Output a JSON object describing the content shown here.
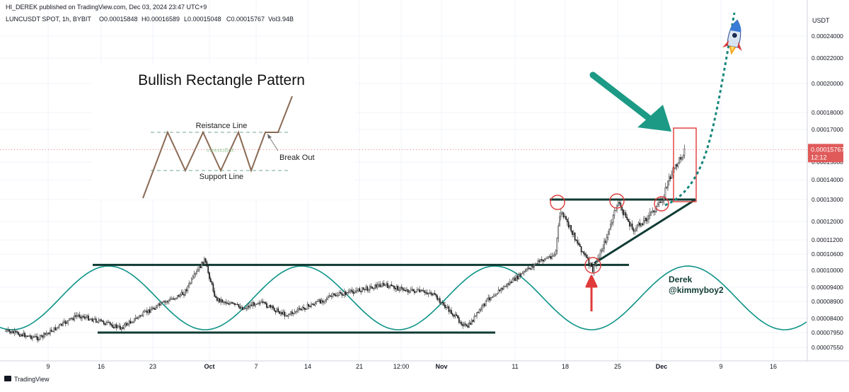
{
  "header": {
    "publisher": "HI_DEREK published on TradingView.com, Dec 03, 2024 23:47 UTC+9",
    "symbol": "LUNCUSDT SPOT, 1h, BYBIT",
    "open": "O0.00015848",
    "high": "H0.00016589",
    "low": "L0.00015048",
    "close": "C0.00015767",
    "volume": "Vol3.94B"
  },
  "price_axis": {
    "currency": "USDT",
    "ticks": [
      {
        "label": "0.00024000",
        "value": 0.00024
      },
      {
        "label": "0.00022000",
        "value": 0.00022
      },
      {
        "label": "0.00020000",
        "value": 0.0002
      },
      {
        "label": "0.00018000",
        "value": 0.00018
      },
      {
        "label": "0.00017000",
        "value": 0.00017
      },
      {
        "label": "0.00015000",
        "value": 0.00015
      },
      {
        "label": "0.00014000",
        "value": 0.00014
      },
      {
        "label": "0.00013000",
        "value": 0.00013
      },
      {
        "label": "0.00012000",
        "value": 0.00012
      },
      {
        "label": "0.00011200",
        "value": 0.000112
      },
      {
        "label": "0.00010600",
        "value": 0.000106
      },
      {
        "label": "0.00010000",
        "value": 0.0001
      },
      {
        "label": "0.00009400",
        "value": 9.4e-05
      },
      {
        "label": "0.00008900",
        "value": 8.9e-05
      },
      {
        "label": "0.00008400",
        "value": 8.4e-05
      },
      {
        "label": "0.00007950",
        "value": 7.95e-05
      },
      {
        "label": "0.00007550",
        "value": 7.55e-05
      }
    ],
    "last_price_label": "0.00015767",
    "last_price_value": 0.00015767,
    "countdown": "12:12"
  },
  "time_axis": {
    "ticks": [
      {
        "label": "9",
        "bold": false
      },
      {
        "label": "16",
        "bold": false
      },
      {
        "label": "23",
        "bold": false
      },
      {
        "label": "Oct",
        "bold": true
      },
      {
        "label": "7",
        "bold": false
      },
      {
        "label": "14",
        "bold": false
      },
      {
        "label": "21",
        "bold": false
      },
      {
        "label": "12:00",
        "bold": false
      },
      {
        "label": "Nov",
        "bold": true
      },
      {
        "label": "11",
        "bold": false
      },
      {
        "label": "18",
        "bold": false
      },
      {
        "label": "25",
        "bold": false
      },
      {
        "label": "Dec",
        "bold": true
      },
      {
        "label": "9",
        "bold": false
      },
      {
        "label": "16",
        "bold": false
      }
    ]
  },
  "inset": {
    "title": "Bullish Rectangle Pattern",
    "resistance_label": "Reistance Line",
    "support_label": "Support Line",
    "breakout_label": "Break Out",
    "watermark": "investoBull"
  },
  "annotation": {
    "author": "Derek",
    "handle": "@kimmyboy2"
  },
  "brand": "TradingView",
  "colors": {
    "up": "#1f1f1f",
    "level_line": "#0f3b33",
    "sine": "#0f9488",
    "projection": "#17877b",
    "big_arrow": "#1c9a85",
    "marker_red": "#e03a3a",
    "price_tag": "#e05a5a"
  },
  "chart_data": {
    "type": "candlestick",
    "symbol": "LUNCUSDT",
    "interval": "1h",
    "exchange": "BYBIT",
    "series": [
      {
        "name": "",
        "x": [
          "Sep 05",
          "Sep 09",
          "Sep 13",
          "Sep 16",
          "Sep 19",
          "Sep 23",
          "Sep 26",
          "Sep 29",
          "Oct 01",
          "Oct 04",
          "Oct 07",
          "Oct 10",
          "Oct 14",
          "Oct 17",
          "Oct 21",
          "Oct 24",
          "Oct 28",
          "Oct 31",
          "Nov 04",
          "Nov 07",
          "Nov 11",
          "Nov 14",
          "Nov 16",
          "Nov 18",
          "Nov 21",
          "Nov 23",
          "Nov 25",
          "Nov 27",
          "Nov 29",
          "Dec 01",
          "Dec 02",
          "Dec 03"
        ],
        "values": [
          8e-05,
          7.8e-05,
          8.5e-05,
          8.3e-05,
          8.1e-05,
          8.7e-05,
          9.2e-05,
          0.000104,
          9e-05,
          8.7e-05,
          8.9e-05,
          8.5e-05,
          8.8e-05,
          9.1e-05,
          9.3e-05,
          9.5e-05,
          9.3e-05,
          9.2e-05,
          8.1e-05,
          9e-05,
          9.7e-05,
          0.000103,
          0.000106,
          0.000125,
          0.0001,
          0.000115,
          0.000129,
          0.000116,
          0.000122,
          0.000129,
          0.00014,
          0.000158
        ]
      }
    ],
    "levels": {
      "rectangle_resistance": 0.000102,
      "rectangle_support": 7.95e-05,
      "new_resistance": 0.00013
    },
    "annotations": [
      "Bullish Rectangle Pattern",
      "Break Out",
      "Derek",
      "@kimmyboy2"
    ],
    "ylim": [
      7e-05,
      0.00026
    ],
    "grid": true,
    "legend": "top-left"
  }
}
